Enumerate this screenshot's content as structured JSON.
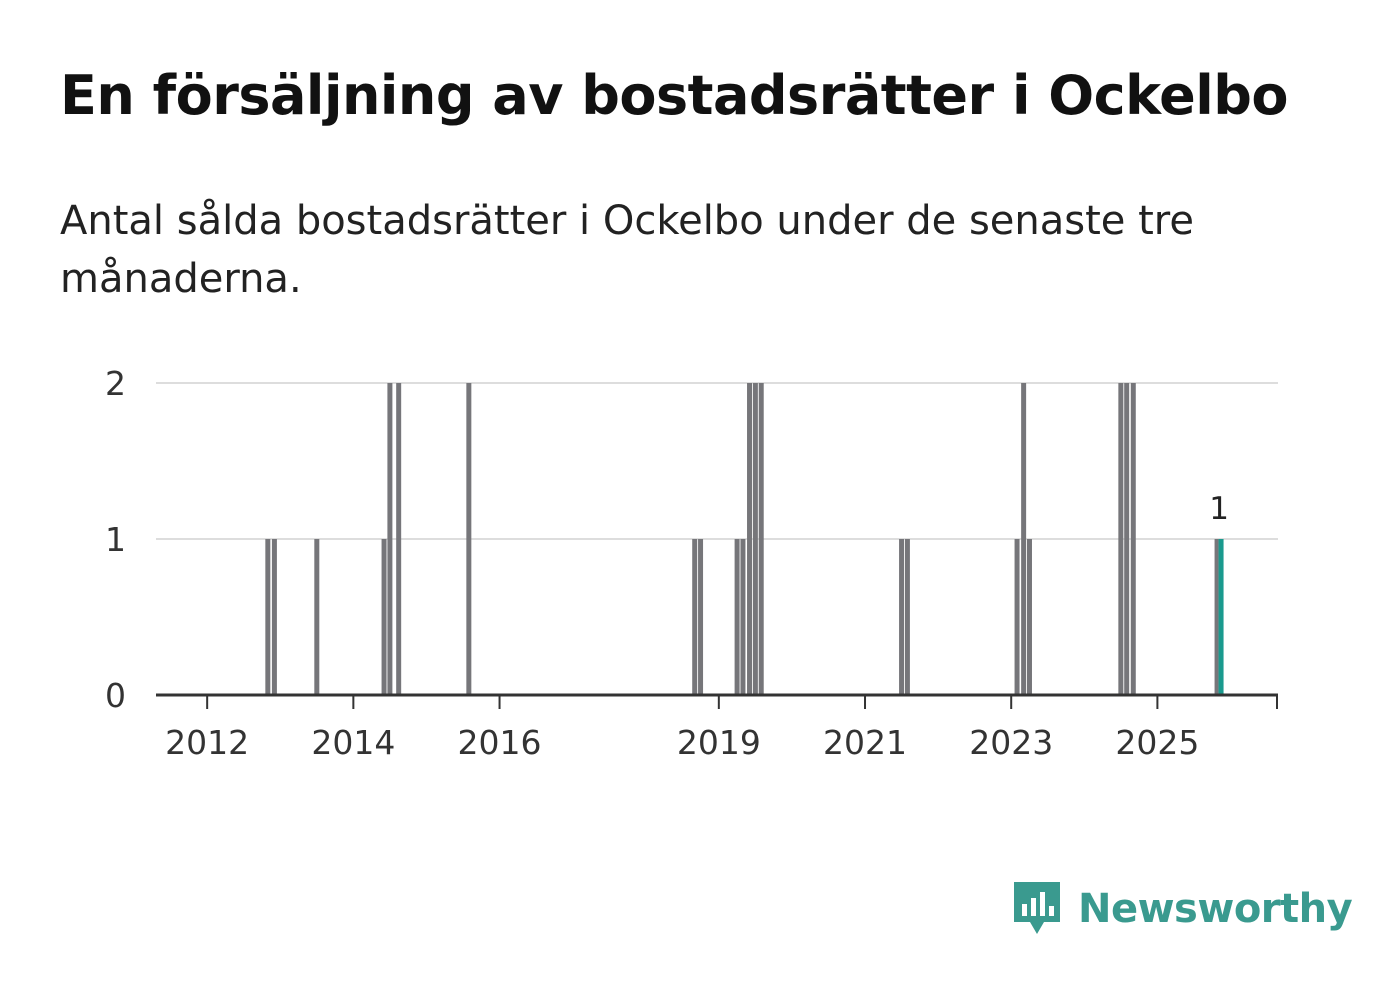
{
  "header": {
    "title": "En försäljning av bostadsrätter i Ockelbo",
    "subtitle": "Antal sålda bostadsrätter i Ockelbo under de senaste tre månaderna."
  },
  "colors": {
    "bar": "#76767a",
    "highlight": "#1a9a8e",
    "gridline": "#dddddd",
    "axis": "#333333",
    "brand": "#3a9a8f"
  },
  "chart_data": {
    "type": "bar",
    "title": "En försäljning av bostadsrätter i Ockelbo",
    "subtitle": "Antal sålda bostadsrätter i Ockelbo under de senaste tre månaderna.",
    "xlabel": "",
    "ylabel": "",
    "xlim": [
      2011.3,
      2026.65
    ],
    "ylim": [
      0,
      2
    ],
    "x_ticks": [
      "2012",
      "2014",
      "2016",
      "2019",
      "2021",
      "2023",
      "2025"
    ],
    "y_ticks": [
      "0",
      "1",
      "2"
    ],
    "grid": true,
    "legend": "none",
    "series": [
      {
        "name": "",
        "x": [
          2012.83,
          2012.92,
          2013.5,
          2014.42,
          2014.5,
          2014.62,
          2015.58,
          2018.67,
          2018.75,
          2019.25,
          2019.33,
          2019.42,
          2019.5,
          2019.58,
          2021.5,
          2021.58,
          2023.08,
          2023.17,
          2023.25,
          2024.5,
          2024.58,
          2024.67
        ],
        "values": [
          1,
          1,
          1,
          1,
          2,
          2,
          2,
          1,
          1,
          1,
          1,
          2,
          2,
          2,
          1,
          1,
          1,
          2,
          1,
          2,
          2,
          2
        ]
      }
    ],
    "highlight": {
      "x": 2025.83,
      "value": 1,
      "label": "1"
    }
  },
  "brand": {
    "name": "Newsworthy",
    "icon": "newsworthy-logo-icon"
  }
}
